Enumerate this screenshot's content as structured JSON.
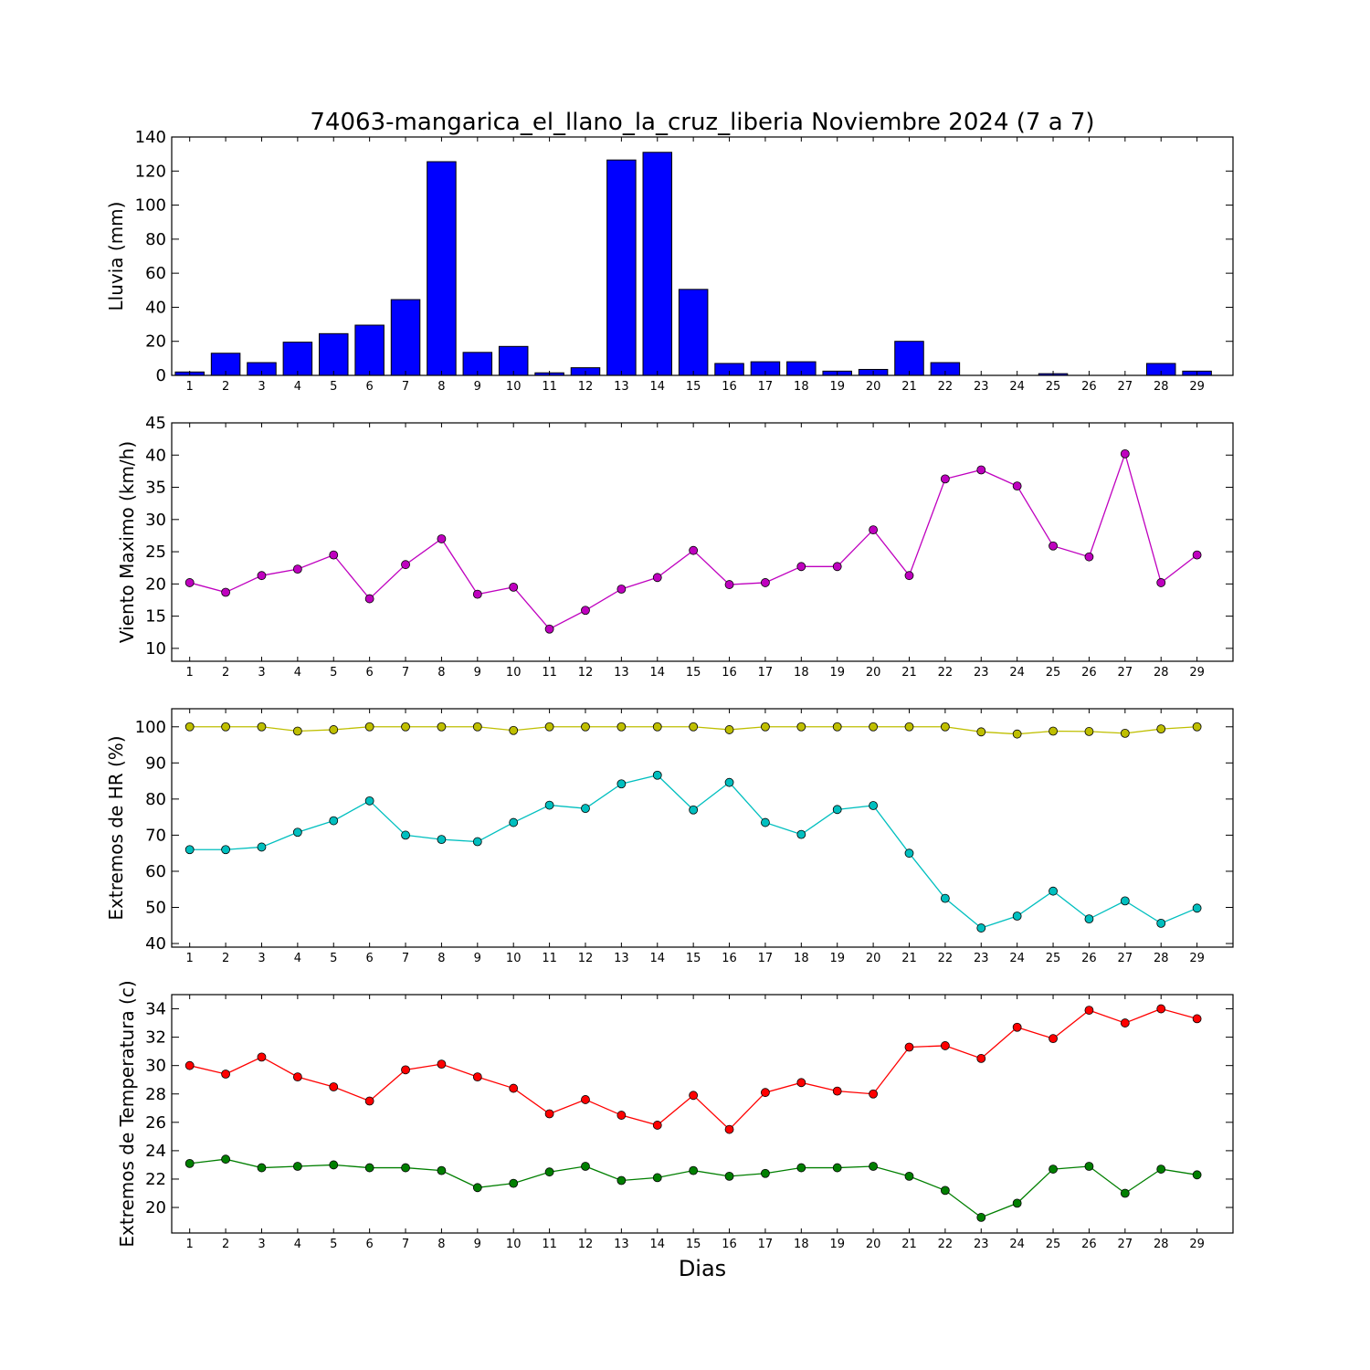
{
  "chart_data": [
    {
      "type": "bar",
      "title": "74063-mangarica_el_llano_la_cruz_liberia Noviembre 2024  (7 a 7)",
      "xlabel": "",
      "ylabel": "Lluvia (mm)",
      "ylim": [
        0,
        140
      ],
      "yticks": [
        0,
        20,
        40,
        60,
        80,
        100,
        120,
        140
      ],
      "categories": [
        1,
        2,
        3,
        4,
        5,
        6,
        7,
        8,
        9,
        10,
        11,
        12,
        13,
        14,
        15,
        16,
        17,
        18,
        19,
        20,
        21,
        22,
        23,
        24,
        25,
        26,
        27,
        28,
        29
      ],
      "series": [
        {
          "color": "#0000ff",
          "values": [
            2,
            13,
            7.5,
            19.5,
            24.5,
            29.5,
            44.5,
            125.5,
            13.5,
            17,
            1.5,
            4.5,
            126.5,
            131,
            50.5,
            7,
            8,
            8,
            2.5,
            3.5,
            20,
            7.5,
            0,
            0,
            1,
            0,
            0,
            7,
            2.5
          ]
        }
      ],
      "grid": false
    },
    {
      "type": "line",
      "title": "",
      "xlabel": "",
      "ylabel": "Viento Maximo (km/h)",
      "ylim": [
        8,
        45
      ],
      "yticks": [
        10,
        15,
        20,
        25,
        30,
        35,
        40,
        45
      ],
      "categories": [
        1,
        2,
        3,
        4,
        5,
        6,
        7,
        8,
        9,
        10,
        11,
        12,
        13,
        14,
        15,
        16,
        17,
        18,
        19,
        20,
        21,
        22,
        23,
        24,
        25,
        26,
        27,
        28,
        29
      ],
      "series": [
        {
          "color": "#bf00bf",
          "values": [
            20.2,
            18.7,
            21.3,
            22.3,
            24.5,
            17.7,
            23,
            27,
            18.4,
            19.5,
            13,
            15.9,
            19.2,
            21,
            25.2,
            19.9,
            20.2,
            22.7,
            22.7,
            28.4,
            21.3,
            36.3,
            37.7,
            35.2,
            25.9,
            24.2,
            40.2,
            20.2,
            24.5
          ]
        }
      ],
      "grid": false
    },
    {
      "type": "line",
      "title": "",
      "xlabel": "",
      "ylabel": "Extremos de HR (%)",
      "ylim": [
        39,
        105
      ],
      "yticks": [
        40,
        50,
        60,
        70,
        80,
        90,
        100
      ],
      "categories": [
        1,
        2,
        3,
        4,
        5,
        6,
        7,
        8,
        9,
        10,
        11,
        12,
        13,
        14,
        15,
        16,
        17,
        18,
        19,
        20,
        21,
        22,
        23,
        24,
        25,
        26,
        27,
        28,
        29
      ],
      "series": [
        {
          "color": "#bfbf00",
          "values": [
            100,
            100,
            100,
            98.8,
            99.2,
            100,
            100,
            100,
            100,
            99,
            100,
            100,
            100,
            100,
            100,
            99.2,
            100,
            100,
            100,
            100,
            100,
            100,
            98.6,
            98,
            98.8,
            98.7,
            98.2,
            99.4,
            100
          ]
        },
        {
          "color": "#00bfbf",
          "values": [
            66,
            66,
            66.7,
            70.8,
            74,
            79.5,
            70,
            68.8,
            68.2,
            73.5,
            78.3,
            77.4,
            84.2,
            86.6,
            77,
            84.6,
            73.5,
            70.2,
            77.1,
            78.2,
            65,
            52.5,
            44.3,
            47.6,
            54.5,
            46.8,
            51.8,
            45.6,
            49.8
          ]
        }
      ],
      "grid": false
    },
    {
      "type": "line",
      "title": "",
      "xlabel": "Dias",
      "ylabel": "Extremos de Temperatura (c)",
      "ylim": [
        18.2,
        35
      ],
      "yticks": [
        20,
        22,
        24,
        26,
        28,
        30,
        32,
        34
      ],
      "categories": [
        1,
        2,
        3,
        4,
        5,
        6,
        7,
        8,
        9,
        10,
        11,
        12,
        13,
        14,
        15,
        16,
        17,
        18,
        19,
        20,
        21,
        22,
        23,
        24,
        25,
        26,
        27,
        28,
        29
      ],
      "series": [
        {
          "color": "#ff0000",
          "values": [
            30,
            29.4,
            30.6,
            29.2,
            28.5,
            27.5,
            29.7,
            30.1,
            29.2,
            28.4,
            26.6,
            27.6,
            26.5,
            25.8,
            27.9,
            25.5,
            28.1,
            28.8,
            28.2,
            28,
            31.3,
            31.4,
            30.5,
            32.7,
            31.9,
            33.9,
            33,
            34,
            33.3
          ]
        },
        {
          "color": "#007f00",
          "values": [
            23.1,
            23.4,
            22.8,
            22.9,
            23,
            22.8,
            22.8,
            22.6,
            21.4,
            21.7,
            22.5,
            22.9,
            21.9,
            22.1,
            22.6,
            22.2,
            22.4,
            22.8,
            22.8,
            22.9,
            22.2,
            21.2,
            19.3,
            20.3,
            22.7,
            22.9,
            21,
            22.7,
            22.3
          ]
        }
      ],
      "grid": false
    }
  ]
}
